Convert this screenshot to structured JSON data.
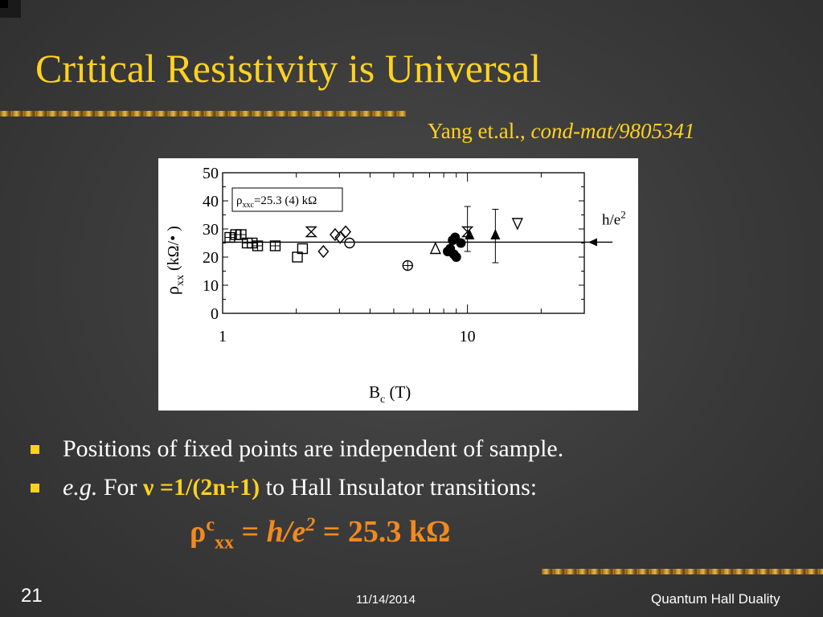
{
  "slide": {
    "title": "Critical Resistivity is Universal",
    "citation_authors": "Yang et.al., ",
    "citation_ref": "cond-mat/9805341"
  },
  "bullets": [
    {
      "text": "Positions of fixed points are independent of sample."
    },
    {
      "prefix_italic": "e.g.",
      "pre": " For ",
      "nu": "ν",
      "eq": " =1/(2n+1)",
      "post": " to Hall Insulator transitions:"
    }
  ],
  "formula": {
    "rho": "ρ",
    "sup_c": "c",
    "sub_xx": "xx",
    "eq1": " = ",
    "h": "h/e",
    "sup_2": "2",
    "eq2": " = 25.3 kΩ"
  },
  "footer": {
    "slide_number": "21",
    "date": "11/14/2014",
    "title": "Quantum Hall Duality"
  },
  "chart_data": {
    "type": "scatter",
    "xscale": "log",
    "xlim": [
      1,
      30
    ],
    "ylim": [
      0,
      50
    ],
    "xticks": [
      1,
      10
    ],
    "xtick_labels": [
      "1",
      "10"
    ],
    "yticks": [
      0,
      10,
      20,
      30,
      40,
      50
    ],
    "ytick_labels": [
      "0",
      "10",
      "20",
      "30",
      "40",
      "50"
    ],
    "xlabel_main": "B",
    "xlabel_sub": "c",
    "xlabel_unit": " (T)",
    "ylabel_main": "ρ",
    "ylabel_sub": "xx",
    "ylabel_unit": " (kΩ/• )",
    "legend_text": "ρ",
    "legend_sub": "xxc",
    "legend_rest": "=25.3 (4)  kΩ",
    "reference_line_y": 25.3,
    "reference_label": "h/e",
    "reference_label_sup": "2",
    "points": [
      {
        "x": 1.07,
        "y": 27,
        "marker": "square-cross"
      },
      {
        "x": 1.13,
        "y": 28,
        "marker": "square-cross"
      },
      {
        "x": 1.19,
        "y": 28,
        "marker": "square-cross"
      },
      {
        "x": 1.26,
        "y": 25,
        "marker": "square-cross"
      },
      {
        "x": 1.32,
        "y": 25,
        "marker": "square-cross"
      },
      {
        "x": 1.39,
        "y": 24,
        "marker": "square-cross"
      },
      {
        "x": 1.64,
        "y": 24,
        "marker": "square-cross"
      },
      {
        "x": 2.02,
        "y": 20,
        "marker": "square"
      },
      {
        "x": 2.12,
        "y": 23,
        "marker": "square"
      },
      {
        "x": 2.3,
        "y": 29,
        "marker": "bowtie"
      },
      {
        "x": 2.58,
        "y": 22,
        "marker": "diamond"
      },
      {
        "x": 2.88,
        "y": 28,
        "marker": "diamond"
      },
      {
        "x": 3.02,
        "y": 27,
        "marker": "diamond"
      },
      {
        "x": 3.18,
        "y": 29,
        "marker": "diamond"
      },
      {
        "x": 3.3,
        "y": 25,
        "marker": "circle"
      },
      {
        "x": 5.7,
        "y": 17,
        "marker": "circle-plus"
      },
      {
        "x": 7.4,
        "y": 23,
        "marker": "triangle"
      },
      {
        "x": 8.3,
        "y": 22,
        "marker": "filled-circle"
      },
      {
        "x": 8.5,
        "y": 23,
        "marker": "filled-circle"
      },
      {
        "x": 8.7,
        "y": 26,
        "marker": "filled-circle"
      },
      {
        "x": 8.8,
        "y": 21,
        "marker": "filled-circle"
      },
      {
        "x": 8.9,
        "y": 27,
        "marker": "filled-circle"
      },
      {
        "x": 9.0,
        "y": 20,
        "marker": "filled-circle"
      },
      {
        "x": 9.4,
        "y": 25,
        "marker": "filled-circle"
      },
      {
        "x": 10.0,
        "y": 29,
        "marker": "bowtie",
        "err": [
          22,
          38
        ]
      },
      {
        "x": 10.2,
        "y": 28,
        "marker": "filled-triangle"
      },
      {
        "x": 13.0,
        "y": 28,
        "marker": "filled-triangle",
        "err": [
          18,
          37
        ]
      },
      {
        "x": 16.0,
        "y": 32,
        "marker": "down-triangle"
      }
    ]
  }
}
